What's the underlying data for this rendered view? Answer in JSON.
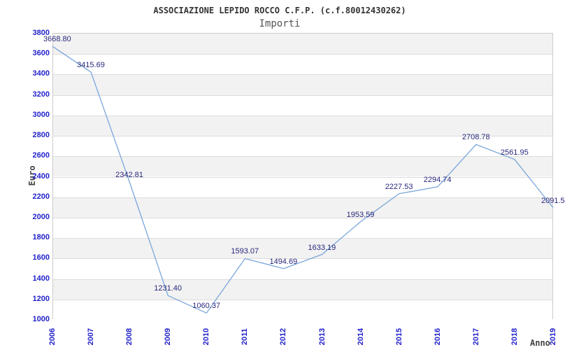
{
  "header": {
    "title": "ASSOCIAZIONE LEPIDO ROCCO C.F.P. (c.f.80012430262)",
    "subtitle": "Importi"
  },
  "chart_data": {
    "type": "line",
    "title": "ASSOCIAZIONE LEPIDO ROCCO C.F.P. (c.f.80012430262)",
    "subtitle": "Importi",
    "xlabel": "Anno",
    "ylabel": "Euro",
    "categories": [
      "2006",
      "2007",
      "2008",
      "2009",
      "2010",
      "2011",
      "2012",
      "2013",
      "2014",
      "2015",
      "2016",
      "2017",
      "2018",
      "2019"
    ],
    "series": [
      {
        "name": "Importi",
        "values": [
          3668.8,
          3415.69,
          2342.81,
          1231.4,
          1060.37,
          1593.07,
          1494.69,
          1633.19,
          1953.59,
          2227.53,
          2294.74,
          2708.78,
          2561.95,
          2091.5
        ]
      }
    ],
    "point_labels": [
      "3668.80",
      "3415.69",
      "2342.81",
      "1231.40",
      "1060.37",
      "1593.07",
      "1494.69",
      "1633.19",
      "1953.59",
      "2227.53",
      "2294.74",
      "2708.78",
      "2561.95",
      "2091.5"
    ],
    "ylim": [
      1000,
      3800
    ],
    "ytick_step": 200,
    "legend": "none",
    "grid": "horizontal-bands-alternating",
    "colors": {
      "line": "#7aa6db",
      "tick_label": "#2222cc",
      "point_label": "#28287c",
      "band_gray": "#f2f2f2",
      "band_white": "#ffffff",
      "gridline": "#dcdcdc",
      "plot_border": "#cccccc",
      "title": "#333333",
      "subtitle": "#555555",
      "axis_title": "#444444",
      "background": "#ffffff"
    }
  }
}
